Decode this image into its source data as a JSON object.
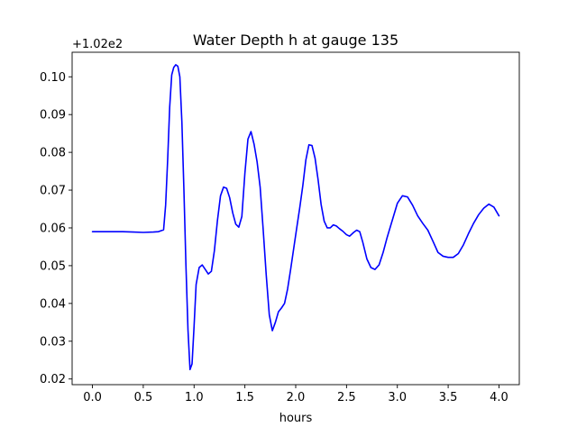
{
  "chart_data": {
    "type": "line",
    "title": "Water Depth h at gauge 135",
    "xlabel": "hours",
    "ylabel": "",
    "y_offset_label": "+1.02e2",
    "xlim": [
      -0.2,
      4.2
    ],
    "ylim": [
      0.0185,
      0.1065
    ],
    "xticks": [
      {
        "value": 0.0,
        "label": "0.0"
      },
      {
        "value": 0.5,
        "label": "0.5"
      },
      {
        "value": 1.0,
        "label": "1.0"
      },
      {
        "value": 1.5,
        "label": "1.5"
      },
      {
        "value": 2.0,
        "label": "2.0"
      },
      {
        "value": 2.5,
        "label": "2.5"
      },
      {
        "value": 3.0,
        "label": "3.0"
      },
      {
        "value": 3.5,
        "label": "3.5"
      },
      {
        "value": 4.0,
        "label": "4.0"
      }
    ],
    "yticks": [
      {
        "value": 0.02,
        "label": "0.02"
      },
      {
        "value": 0.03,
        "label": "0.03"
      },
      {
        "value": 0.04,
        "label": "0.04"
      },
      {
        "value": 0.05,
        "label": "0.05"
      },
      {
        "value": 0.06,
        "label": "0.06"
      },
      {
        "value": 0.07,
        "label": "0.07"
      },
      {
        "value": 0.08,
        "label": "0.08"
      },
      {
        "value": 0.09,
        "label": "0.09"
      },
      {
        "value": 0.1,
        "label": "0.10"
      }
    ],
    "grid": false,
    "series": [
      {
        "color": "#0000ff",
        "x": [
          0.0,
          0.1,
          0.2,
          0.3,
          0.4,
          0.5,
          0.6,
          0.65,
          0.7,
          0.72,
          0.74,
          0.76,
          0.78,
          0.8,
          0.82,
          0.84,
          0.86,
          0.88,
          0.9,
          0.92,
          0.94,
          0.96,
          0.98,
          1.0,
          1.02,
          1.05,
          1.08,
          1.11,
          1.14,
          1.17,
          1.2,
          1.23,
          1.26,
          1.29,
          1.32,
          1.35,
          1.38,
          1.41,
          1.44,
          1.47,
          1.5,
          1.53,
          1.56,
          1.59,
          1.62,
          1.65,
          1.68,
          1.71,
          1.74,
          1.77,
          1.8,
          1.83,
          1.86,
          1.89,
          1.92,
          1.95,
          1.98,
          2.01,
          2.04,
          2.07,
          2.1,
          2.13,
          2.16,
          2.19,
          2.22,
          2.25,
          2.28,
          2.31,
          2.34,
          2.37,
          2.4,
          2.43,
          2.46,
          2.5,
          2.53,
          2.57,
          2.6,
          2.63,
          2.66,
          2.7,
          2.74,
          2.78,
          2.82,
          2.86,
          2.9,
          2.95,
          3.0,
          3.05,
          3.1,
          3.15,
          3.2,
          3.25,
          3.3,
          3.35,
          3.4,
          3.45,
          3.5,
          3.55,
          3.6,
          3.65,
          3.7,
          3.75,
          3.8,
          3.85,
          3.9,
          3.95,
          4.0
        ],
        "values": [
          0.059,
          0.059,
          0.059,
          0.059,
          0.0589,
          0.0588,
          0.0589,
          0.059,
          0.0595,
          0.066,
          0.078,
          0.092,
          0.1005,
          0.1025,
          0.1032,
          0.1028,
          0.1,
          0.088,
          0.07,
          0.05,
          0.033,
          0.0225,
          0.024,
          0.034,
          0.045,
          0.0495,
          0.0502,
          0.049,
          0.0478,
          0.0485,
          0.054,
          0.062,
          0.0685,
          0.0708,
          0.0705,
          0.068,
          0.064,
          0.061,
          0.0602,
          0.063,
          0.0745,
          0.0835,
          0.0855,
          0.0822,
          0.0775,
          0.0708,
          0.0595,
          0.0475,
          0.037,
          0.0328,
          0.035,
          0.0378,
          0.0388,
          0.04,
          0.0438,
          0.049,
          0.0545,
          0.06,
          0.0654,
          0.0712,
          0.078,
          0.082,
          0.0818,
          0.0785,
          0.0728,
          0.0662,
          0.0618,
          0.06,
          0.06,
          0.0608,
          0.0605,
          0.0598,
          0.0592,
          0.0582,
          0.0578,
          0.0588,
          0.0594,
          0.059,
          0.0562,
          0.0518,
          0.0495,
          0.049,
          0.0502,
          0.0535,
          0.0575,
          0.062,
          0.0665,
          0.0685,
          0.0682,
          0.066,
          0.0632,
          0.0612,
          0.0594,
          0.0565,
          0.0535,
          0.0525,
          0.0522,
          0.0522,
          0.0532,
          0.0555,
          0.0585,
          0.0612,
          0.0635,
          0.0652,
          0.0663,
          0.0655,
          0.0632
        ]
      }
    ]
  }
}
